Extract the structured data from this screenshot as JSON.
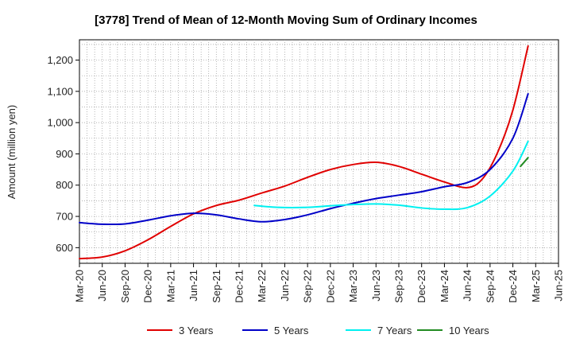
{
  "chart_data": {
    "type": "line",
    "title": "[3778]  Trend of Mean of 12-Month Moving Sum of Ordinary Incomes",
    "xlabel": "",
    "ylabel": "Amount (million yen)",
    "ylim": [
      550,
      1265
    ],
    "y_ticks": [
      600,
      700,
      800,
      900,
      1000,
      1100,
      1200
    ],
    "y_tick_labels": [
      "600",
      "700",
      "800",
      "900",
      "1,000",
      "1,100",
      "1,200"
    ],
    "x_index_range": [
      0,
      63
    ],
    "x_tick_labels": [
      "Mar-20",
      "Jun-20",
      "Sep-20",
      "Dec-20",
      "Mar-21",
      "Jun-21",
      "Sep-21",
      "Dec-21",
      "Mar-22",
      "Jun-22",
      "Sep-22",
      "Dec-22",
      "Mar-23",
      "Jun-23",
      "Sep-23",
      "Dec-23",
      "Mar-24",
      "Jun-24",
      "Sep-24",
      "Dec-24",
      "Mar-25",
      "Jun-25"
    ],
    "grid": true,
    "legend_position": "bottom",
    "series": [
      {
        "name": "3 Years",
        "color": "#e00000",
        "points": [
          [
            0,
            565
          ],
          [
            3,
            570
          ],
          [
            6,
            590
          ],
          [
            9,
            625
          ],
          [
            12,
            668
          ],
          [
            15,
            708
          ],
          [
            18,
            735
          ],
          [
            21,
            752
          ],
          [
            24,
            775
          ],
          [
            27,
            797
          ],
          [
            30,
            825
          ],
          [
            33,
            850
          ],
          [
            36,
            866
          ],
          [
            39,
            873
          ],
          [
            42,
            860
          ],
          [
            45,
            835
          ],
          [
            48,
            810
          ],
          [
            51,
            792
          ],
          [
            53,
            820
          ],
          [
            55,
            905
          ],
          [
            57,
            1040
          ],
          [
            59,
            1245
          ]
        ]
      },
      {
        "name": "5 Years",
        "color": "#0000c8",
        "points": [
          [
            0,
            680
          ],
          [
            3,
            675
          ],
          [
            6,
            676
          ],
          [
            9,
            688
          ],
          [
            12,
            702
          ],
          [
            15,
            710
          ],
          [
            18,
            705
          ],
          [
            21,
            692
          ],
          [
            24,
            683
          ],
          [
            27,
            690
          ],
          [
            30,
            705
          ],
          [
            33,
            725
          ],
          [
            36,
            742
          ],
          [
            39,
            757
          ],
          [
            42,
            768
          ],
          [
            45,
            779
          ],
          [
            48,
            795
          ],
          [
            51,
            808
          ],
          [
            54,
            850
          ],
          [
            57,
            950
          ],
          [
            59,
            1092
          ]
        ]
      },
      {
        "name": "7 Years",
        "color": "#00f0f0",
        "points": [
          [
            23,
            735
          ],
          [
            26,
            729
          ],
          [
            30,
            729
          ],
          [
            33,
            734
          ],
          [
            36,
            738
          ],
          [
            39,
            740
          ],
          [
            42,
            736
          ],
          [
            45,
            727
          ],
          [
            48,
            723
          ],
          [
            51,
            728
          ],
          [
            54,
            765
          ],
          [
            57,
            845
          ],
          [
            59,
            940
          ]
        ]
      },
      {
        "name": "10 Years",
        "color": "#228b22",
        "points": [
          [
            58,
            860
          ],
          [
            59,
            888
          ]
        ]
      }
    ]
  }
}
